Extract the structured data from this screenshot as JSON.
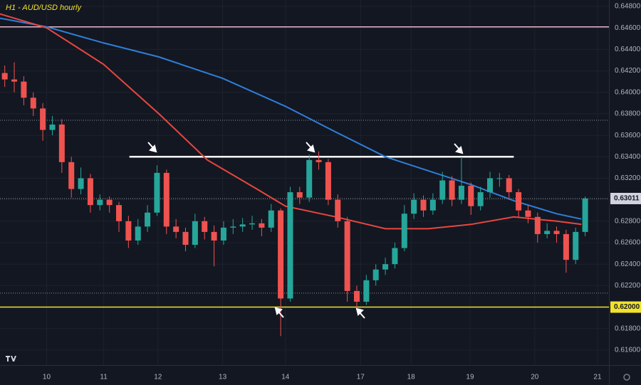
{
  "chart_data": {
    "type": "candlestick",
    "title": "H1 - AUD/USD hourly",
    "x": [
      0.5,
      1.5,
      2.5,
      3.5,
      4.5,
      5.5,
      6.5,
      7.5,
      8.5,
      9.5,
      10.5,
      11.5,
      12.5,
      13.5,
      14.5,
      15.5,
      16.5,
      17.5,
      18.5,
      19.5,
      20.5,
      21.5,
      22.5,
      23.5,
      24.5,
      25.5,
      26.5,
      27.5,
      28.5,
      29.5,
      30.5,
      31.5,
      32.5,
      33.5,
      34.5,
      35.5,
      36.5,
      37.5,
      38.5,
      39.5,
      40.5,
      41.5,
      42.5,
      43.5,
      44.5,
      45.5,
      46.5,
      47.5,
      48.5,
      49.5,
      50.5,
      51.5,
      52.5,
      53.5,
      54.5,
      55.5,
      56.5,
      57.5,
      58.5,
      59.5,
      60.5,
      61.5
    ],
    "open": [
      0.6418,
      0.6412,
      0.641,
      0.6395,
      0.6385,
      0.6365,
      0.637,
      0.6335,
      0.631,
      0.632,
      0.6295,
      0.63,
      0.6295,
      0.628,
      0.6262,
      0.6275,
      0.6288,
      0.6325,
      0.6275,
      0.627,
      0.6258,
      0.628,
      0.627,
      0.6262,
      0.6274,
      0.6275,
      0.6277,
      0.6278,
      0.6274,
      0.629,
      0.6208,
      0.6307,
      0.6302,
      0.6337,
      0.6335,
      0.63,
      0.628,
      0.6215,
      0.6205,
      0.6225,
      0.6235,
      0.624,
      0.6255,
      0.6287,
      0.63,
      0.629,
      0.63,
      0.6318,
      0.63,
      0.6313,
      0.6294,
      0.6307,
      0.632,
      0.632,
      0.6307,
      0.629,
      0.6284,
      0.6268,
      0.6271,
      0.6268,
      0.6244,
      0.627
    ],
    "high": [
      0.6425,
      0.6428,
      0.6415,
      0.64,
      0.639,
      0.6378,
      0.6375,
      0.634,
      0.633,
      0.6324,
      0.6305,
      0.6303,
      0.6298,
      0.6285,
      0.6282,
      0.6295,
      0.6332,
      0.6328,
      0.6282,
      0.6274,
      0.6287,
      0.6284,
      0.6276,
      0.628,
      0.6282,
      0.6283,
      0.6285,
      0.6282,
      0.6296,
      0.6292,
      0.6312,
      0.6312,
      0.6342,
      0.6345,
      0.6338,
      0.6305,
      0.6284,
      0.622,
      0.623,
      0.624,
      0.6246,
      0.626,
      0.6295,
      0.6306,
      0.6304,
      0.6306,
      0.6326,
      0.6322,
      0.634,
      0.6316,
      0.6312,
      0.6326,
      0.6325,
      0.6323,
      0.631,
      0.6295,
      0.6288,
      0.6278,
      0.6275,
      0.6272,
      0.6274,
      0.6303
    ],
    "low": [
      0.6405,
      0.64,
      0.6388,
      0.6378,
      0.6355,
      0.636,
      0.6325,
      0.6302,
      0.6305,
      0.6288,
      0.629,
      0.6288,
      0.627,
      0.6255,
      0.6258,
      0.627,
      0.6285,
      0.6268,
      0.6264,
      0.6252,
      0.6255,
      0.6263,
      0.6238,
      0.6258,
      0.6268,
      0.627,
      0.6272,
      0.6266,
      0.627,
      0.6173,
      0.6205,
      0.6296,
      0.6298,
      0.6328,
      0.6295,
      0.6274,
      0.6205,
      0.6198,
      0.6202,
      0.622,
      0.623,
      0.6236,
      0.6252,
      0.6282,
      0.6284,
      0.6286,
      0.6296,
      0.6294,
      0.6296,
      0.6286,
      0.629,
      0.6302,
      0.6312,
      0.63,
      0.6284,
      0.6278,
      0.626,
      0.6264,
      0.626,
      0.6232,
      0.624,
      0.6266
    ],
    "close": [
      0.6412,
      0.641,
      0.6395,
      0.6385,
      0.6365,
      0.637,
      0.6335,
      0.631,
      0.632,
      0.6295,
      0.63,
      0.6295,
      0.628,
      0.6262,
      0.6275,
      0.6288,
      0.6325,
      0.6275,
      0.627,
      0.6258,
      0.628,
      0.627,
      0.6262,
      0.6274,
      0.6275,
      0.6277,
      0.6278,
      0.6274,
      0.629,
      0.6208,
      0.6307,
      0.6302,
      0.6337,
      0.6335,
      0.63,
      0.628,
      0.6215,
      0.6205,
      0.6225,
      0.6235,
      0.624,
      0.6255,
      0.6287,
      0.63,
      0.629,
      0.63,
      0.6318,
      0.63,
      0.6313,
      0.6294,
      0.6307,
      0.632,
      0.632,
      0.6307,
      0.629,
      0.6284,
      0.6268,
      0.6271,
      0.6268,
      0.6244,
      0.627,
      0.63011
    ],
    "up_color": "#26a69a",
    "down_color": "#ef5350",
    "lines": [
      {
        "color": "#2f7fd8",
        "x": [
          0,
          4.9,
          10.9,
          16.7,
          23.4,
          30,
          35.3,
          40.5,
          45,
          49.5,
          54,
          58.5,
          61.1
        ],
        "values": [
          0.6469,
          0.6461,
          0.6446,
          0.6433,
          0.6413,
          0.6387,
          0.6363,
          0.634,
          0.6327,
          0.6314,
          0.6299,
          0.6287,
          0.6282
        ]
      },
      {
        "color": "#e8473f",
        "x": [
          0,
          4.9,
          10.9,
          16.7,
          21.8,
          27,
          30,
          35.3,
          40.5,
          45,
          49.5,
          54,
          58.5,
          61.1
        ],
        "values": [
          0.6473,
          0.646,
          0.6426,
          0.638,
          0.6337,
          0.631,
          0.6294,
          0.6284,
          0.6273,
          0.6273,
          0.6277,
          0.6284,
          0.628,
          0.6277
        ]
      }
    ],
    "levels": [
      {
        "value": 0.6461,
        "color": "#e6b8cc",
        "style": "solid"
      },
      {
        "value": 0.6374,
        "color": "#8a8f9c",
        "style": "dotted"
      },
      {
        "value": 0.63011,
        "label": "0.63011",
        "color": "#9aa0ab",
        "style": "dotted"
      },
      {
        "value": 0.6213,
        "color": "#8a8f9c",
        "style": "dotted"
      },
      {
        "value": 0.62,
        "label": "0.62000",
        "color": "#f2e22c",
        "style": "solid"
      }
    ],
    "resistance": {
      "value": 0.634,
      "x": [
        13.6,
        54
      ],
      "color": "#ffffff"
    },
    "xlim": [
      0,
      64
    ],
    "ylim": [
      0.6146,
      0.6486
    ],
    "xticks": [
      {
        "value": 4.9,
        "label": "10"
      },
      {
        "value": 10.9,
        "label": "11"
      },
      {
        "value": 16.6,
        "label": "12"
      },
      {
        "value": 23.4,
        "label": "13"
      },
      {
        "value": 30,
        "label": "14"
      },
      {
        "value": 37.9,
        "label": "17"
      },
      {
        "value": 43.2,
        "label": "18"
      },
      {
        "value": 49.4,
        "label": "19"
      },
      {
        "value": 56.2,
        "label": "20"
      },
      {
        "value": 62.8,
        "label": "21"
      }
    ],
    "yticks": [
      {
        "value": 0.616,
        "label": "0.61600"
      },
      {
        "value": 0.618,
        "label": "0.61800"
      },
      {
        "value": 0.62,
        "label": "0.62000"
      },
      {
        "value": 0.622,
        "label": "0.62200"
      },
      {
        "value": 0.624,
        "label": "0.62400"
      },
      {
        "value": 0.626,
        "label": "0.62600"
      },
      {
        "value": 0.628,
        "label": "0.62800"
      },
      {
        "value": 0.63,
        "label": "0.63000"
      },
      {
        "value": 0.632,
        "label": "0.63200"
      },
      {
        "value": 0.634,
        "label": "0.63400"
      },
      {
        "value": 0.636,
        "label": "0.63600"
      },
      {
        "value": 0.638,
        "label": "0.63800"
      },
      {
        "value": 0.64,
        "label": "0.64000"
      },
      {
        "value": 0.642,
        "label": "0.64200"
      },
      {
        "value": 0.644,
        "label": "0.64400"
      },
      {
        "value": 0.646,
        "label": "0.64600"
      },
      {
        "value": 0.648,
        "label": "0.64800"
      }
    ],
    "grid": true
  }
}
